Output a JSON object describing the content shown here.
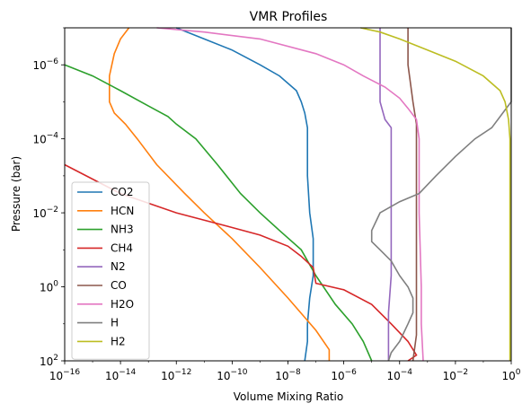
{
  "chart_data": {
    "type": "line",
    "title": "VMR Profiles",
    "xlabel": "Volume Mixing Ratio",
    "ylabel": "Pressure (bar)",
    "xscale": "log",
    "yscale": "log",
    "yaxis_inverted": true,
    "xlim": [
      1e-16,
      1
    ],
    "ylim": [
      100,
      1e-07
    ],
    "x_ticks": [
      {
        "value": 1e-16,
        "base": "10",
        "exp": "−16"
      },
      {
        "value": 1e-14,
        "base": "10",
        "exp": "−14"
      },
      {
        "value": 1e-12,
        "base": "10",
        "exp": "−12"
      },
      {
        "value": 1e-10,
        "base": "10",
        "exp": "−10"
      },
      {
        "value": 1e-08,
        "base": "10",
        "exp": "−8"
      },
      {
        "value": 1e-06,
        "base": "10",
        "exp": "−6"
      },
      {
        "value": 0.0001,
        "base": "10",
        "exp": "−4"
      },
      {
        "value": 0.01,
        "base": "10",
        "exp": "−2"
      },
      {
        "value": 1,
        "base": "10",
        "exp": "0"
      }
    ],
    "y_ticks": [
      {
        "value": 1e-06,
        "base": "10",
        "exp": "−6"
      },
      {
        "value": 0.0001,
        "base": "10",
        "exp": "−4"
      },
      {
        "value": 0.01,
        "base": "10",
        "exp": "−2"
      },
      {
        "value": 1,
        "base": "10",
        "exp": "0"
      },
      {
        "value": 100,
        "base": "10",
        "exp": "2"
      }
    ],
    "legend_position": "lower-left",
    "series": [
      {
        "name": "CO2",
        "color": "#1f77b4",
        "points": [
          [
            1e-12,
            1e-07
          ],
          [
            1e-11,
            2e-07
          ],
          [
            1e-10,
            4e-07
          ],
          [
            1e-09,
            1e-06
          ],
          [
            5e-09,
            2e-06
          ],
          [
            2e-08,
            5e-06
          ],
          [
            3e-08,
            1e-05
          ],
          [
            4e-08,
            2e-05
          ],
          [
            5e-08,
            5e-05
          ],
          [
            5e-08,
            0.001
          ],
          [
            6e-08,
            0.01
          ],
          [
            8e-08,
            0.05
          ],
          [
            8e-08,
            0.5
          ],
          [
            6e-08,
            2
          ],
          [
            5e-08,
            10
          ],
          [
            5e-08,
            30
          ],
          [
            4e-08,
            100
          ]
        ]
      },
      {
        "name": "HCN",
        "color": "#ff7f0e",
        "points": [
          [
            2e-14,
            1e-07
          ],
          [
            1e-14,
            2e-07
          ],
          [
            6e-15,
            5e-07
          ],
          [
            4e-15,
            2e-06
          ],
          [
            4e-15,
            1e-05
          ],
          [
            6e-15,
            2e-05
          ],
          [
            1.5e-14,
            4e-05
          ],
          [
            4e-14,
            0.0001
          ],
          [
            2e-13,
            0.0005
          ],
          [
            2e-12,
            0.003
          ],
          [
            1e-11,
            0.01
          ],
          [
            1e-10,
            0.05
          ],
          [
            1e-09,
            0.3
          ],
          [
            1e-08,
            2
          ],
          [
            1e-07,
            15
          ],
          [
            3e-07,
            50
          ],
          [
            3e-07,
            100
          ]
        ]
      },
      {
        "name": "NH3",
        "color": "#2ca02c",
        "points": [
          [
            1e-16,
            1e-06
          ],
          [
            1e-15,
            2e-06
          ],
          [
            1e-14,
            5e-06
          ],
          [
            1e-13,
            1.3e-05
          ],
          [
            5e-13,
            2.5e-05
          ],
          [
            1e-12,
            4e-05
          ],
          [
            5e-12,
            0.0001
          ],
          [
            3e-11,
            0.0005
          ],
          [
            2e-10,
            0.003
          ],
          [
            1e-09,
            0.01
          ],
          [
            5e-09,
            0.03
          ],
          [
            3e-08,
            0.1
          ],
          [
            1e-07,
            0.5
          ],
          [
            5e-07,
            3
          ],
          [
            2e-06,
            10
          ],
          [
            5e-06,
            30
          ],
          [
            1e-05,
            100
          ]
        ]
      },
      {
        "name": "CH4",
        "color": "#d62728",
        "points": [
          [
            1e-16,
            0.0005
          ],
          [
            1e-14,
            0.003
          ],
          [
            1e-12,
            0.01
          ],
          [
            1e-10,
            0.025
          ],
          [
            1e-09,
            0.04
          ],
          [
            1e-08,
            0.08
          ],
          [
            3e-08,
            0.15
          ],
          [
            8e-08,
            0.3
          ],
          [
            1e-07,
            0.8
          ],
          [
            1e-06,
            1.2
          ],
          [
            1e-05,
            3
          ],
          [
            5e-05,
            10
          ],
          [
            0.0002,
            30
          ],
          [
            0.0004,
            70
          ],
          [
            0.0002,
            100
          ]
        ]
      },
      {
        "name": "N2",
        "color": "#9467bd",
        "points": [
          [
            2e-05,
            1e-07
          ],
          [
            2e-05,
            1e-06
          ],
          [
            2e-05,
            1e-05
          ],
          [
            3e-05,
            3e-05
          ],
          [
            5e-05,
            5e-05
          ],
          [
            5e-05,
            0.001
          ],
          [
            5e-05,
            0.01
          ],
          [
            5e-05,
            0.5
          ],
          [
            4e-05,
            5
          ],
          [
            4e-05,
            100
          ]
        ]
      },
      {
        "name": "CO",
        "color": "#8c564b",
        "points": [
          [
            0.0002,
            1e-07
          ],
          [
            0.0002,
            1e-06
          ],
          [
            0.0003,
            1e-05
          ],
          [
            0.0004,
            4e-05
          ],
          [
            0.0004,
            0.0001
          ],
          [
            0.0004,
            0.01
          ],
          [
            0.0004,
            1
          ],
          [
            0.0004,
            20
          ],
          [
            0.0003,
            100
          ]
        ]
      },
      {
        "name": "H2O",
        "color": "#e377c2",
        "points": [
          [
            2e-13,
            1e-07
          ],
          [
            1e-11,
            1.3e-07
          ],
          [
            1e-09,
            2e-07
          ],
          [
            1e-07,
            5e-07
          ],
          [
            1e-06,
            1e-06
          ],
          [
            5e-06,
            2e-06
          ],
          [
            3e-05,
            4e-06
          ],
          [
            0.0001,
            8e-06
          ],
          [
            0.0002,
            1.5e-05
          ],
          [
            0.0004,
            3e-05
          ],
          [
            0.0005,
            0.0001
          ],
          [
            0.0005,
            0.01
          ],
          [
            0.0006,
            1
          ],
          [
            0.0006,
            10
          ],
          [
            0.0007,
            100
          ]
        ]
      },
      {
        "name": "H",
        "color": "#7f7f7f",
        "points": [
          [
            1,
            1e-07
          ],
          [
            1,
            1e-05
          ],
          [
            0.5,
            2e-05
          ],
          [
            0.2,
            5e-05
          ],
          [
            0.05,
            0.0001
          ],
          [
            0.01,
            0.0003
          ],
          [
            0.002,
            0.001
          ],
          [
            0.0005,
            0.003
          ],
          [
            0.0001,
            0.005
          ],
          [
            2e-05,
            0.01
          ],
          [
            1e-05,
            0.03
          ],
          [
            1e-05,
            0.06
          ],
          [
            2e-05,
            0.1
          ],
          [
            5e-05,
            0.2
          ],
          [
            0.0001,
            0.5
          ],
          [
            0.0002,
            1
          ],
          [
            0.0003,
            2
          ],
          [
            0.0003,
            5
          ],
          [
            0.0002,
            10
          ],
          [
            0.0001,
            30
          ],
          [
            5e-05,
            60
          ],
          [
            4e-05,
            100
          ]
        ]
      },
      {
        "name": "H2",
        "color": "#bcbd22",
        "points": [
          [
            4e-06,
            1e-07
          ],
          [
            2e-05,
            1.3e-07
          ],
          [
            0.0001,
            2e-07
          ],
          [
            0.001,
            4e-07
          ],
          [
            0.01,
            8e-07
          ],
          [
            0.1,
            2e-06
          ],
          [
            0.4,
            5e-06
          ],
          [
            0.6,
            1e-05
          ],
          [
            0.8,
            3e-05
          ],
          [
            0.9,
            0.0001
          ],
          [
            0.9,
            0.01
          ],
          [
            0.9,
            1
          ],
          [
            0.9,
            100
          ]
        ]
      }
    ]
  }
}
